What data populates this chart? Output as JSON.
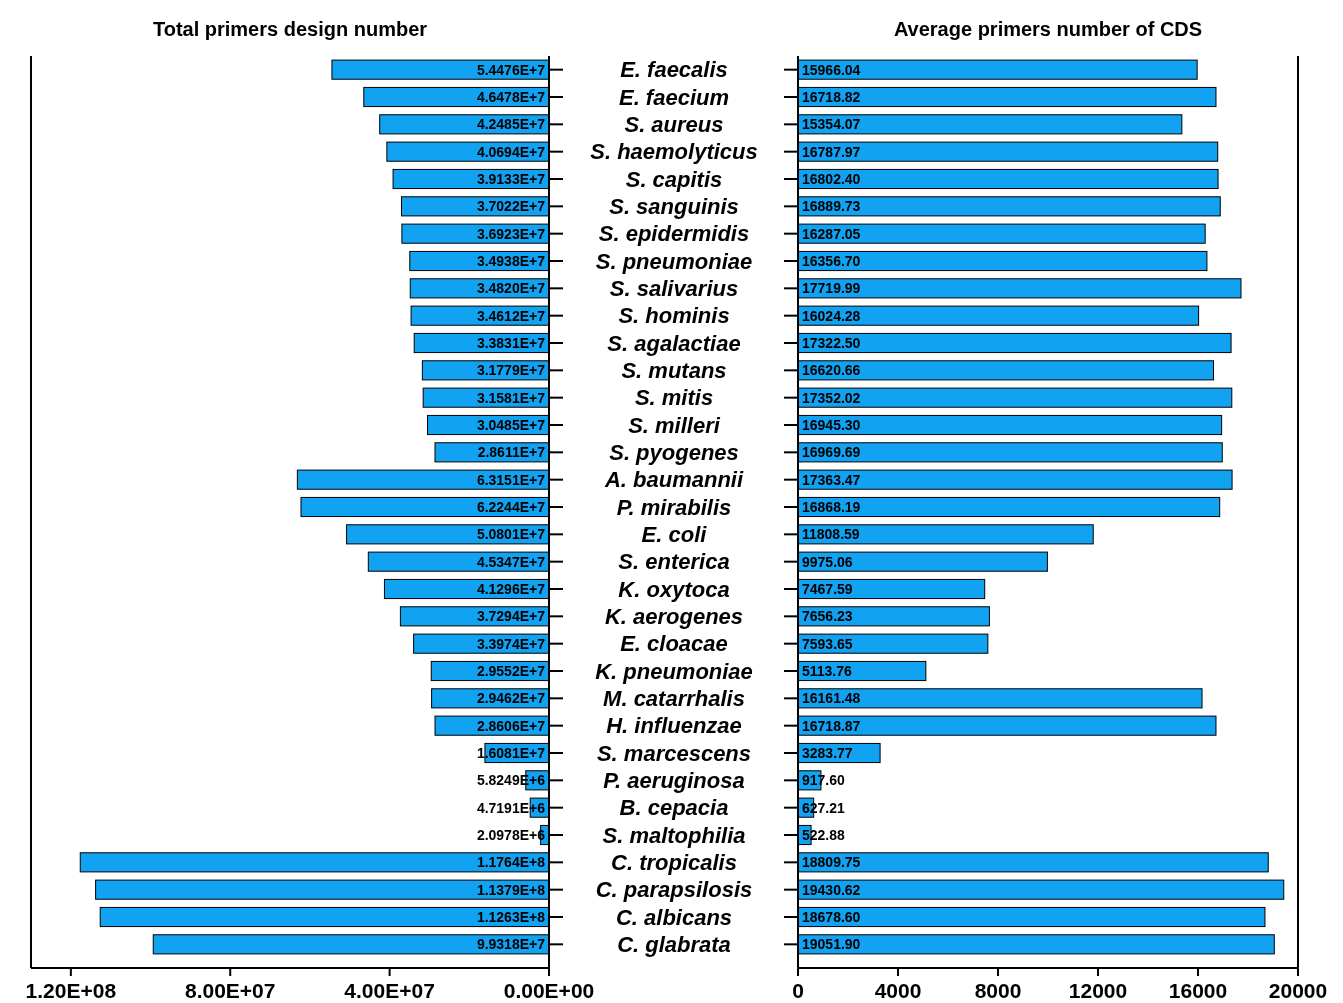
{
  "chart_data": [
    {
      "type": "bar",
      "orientation": "horizontal",
      "title": "Total primers design number",
      "categories": [
        "E. faecalis",
        "E. faecium",
        "S. aureus",
        "S. haemolyticus",
        "S. capitis",
        "S. sanguinis",
        "S. epidermidis",
        "S. pneumoniae",
        "S. salivarius",
        "S. hominis",
        "S. agalactiae",
        "S. mutans",
        "S. mitis",
        "S. milleri",
        "S. pyogenes",
        "A. baumannii",
        "P. mirabilis",
        "E. coli",
        "S. enterica",
        "K. oxytoca",
        "K. aerogenes",
        "E. cloacae",
        "K. pneumoniae",
        "M. catarrhalis",
        "H. influenzae",
        "S. marcescens",
        "P. aeruginosa",
        "B. cepacia",
        "S. maltophilia",
        "C. tropicalis",
        "C. parapsilosis",
        "C. albicans",
        "C. glabrata"
      ],
      "values": [
        54476000,
        46478000,
        42485000,
        40694000,
        39133000,
        37022000,
        36923000,
        34938000,
        34820000,
        34612000,
        33831000,
        31779000,
        31581000,
        30485000,
        28611000,
        63151000,
        62244000,
        50801000,
        45347000,
        41296000,
        37294000,
        33974000,
        29552000,
        29462000,
        28606000,
        16081000,
        5824900,
        4719100,
        2097800,
        117640000,
        113790000,
        112630000,
        99318000
      ],
      "value_labels": [
        "5.4476E+7",
        "4.6478E+7",
        "4.2485E+7",
        "4.0694E+7",
        "3.9133E+7",
        "3.7022E+7",
        "3.6923E+7",
        "3.4938E+7",
        "3.4820E+7",
        "3.4612E+7",
        "3.3831E+7",
        "3.1779E+7",
        "3.1581E+7",
        "3.0485E+7",
        "2.8611E+7",
        "6.3151E+7",
        "6.2244E+7",
        "5.0801E+7",
        "4.5347E+7",
        "4.1296E+7",
        "3.7294E+7",
        "3.3974E+7",
        "2.9552E+7",
        "2.9462E+7",
        "2.8606E+7",
        "1.6081E+7",
        "5.8249E+6",
        "4.7191E+6",
        "2.0978E+6",
        "1.1764E+8",
        "1.1379E+8",
        "1.1263E+8",
        "9.9318E+7"
      ],
      "color": "#12a2f2",
      "xlim": [
        130000000,
        0
      ],
      "xticks": [
        {
          "value": 120000000,
          "label": "1.20E+08"
        },
        {
          "value": 80000000,
          "label": "8.00E+07"
        },
        {
          "value": 40000000,
          "label": "4.00E+07"
        },
        {
          "value": 0,
          "label": "0.00E+00"
        }
      ]
    },
    {
      "type": "bar",
      "orientation": "horizontal",
      "title": "Average primers number of CDS",
      "categories": [
        null,
        null,
        null,
        null,
        null,
        null,
        null,
        null,
        null,
        null,
        null,
        null,
        null,
        null,
        null,
        null,
        null,
        null,
        null,
        null,
        null,
        null,
        null,
        null,
        null,
        null,
        null,
        null,
        null,
        null,
        null,
        null,
        null
      ],
      "values": [
        15966.04,
        16718.82,
        15354.07,
        16787.97,
        16802.4,
        16889.73,
        16287.05,
        16356.7,
        17719.99,
        16024.28,
        17322.5,
        16620.66,
        17352.02,
        16945.3,
        16969.69,
        17363.47,
        16868.19,
        11808.59,
        9975.06,
        7467.59,
        7656.23,
        7593.65,
        5113.76,
        16161.48,
        16718.87,
        3283.77,
        917.6,
        627.21,
        522.88,
        18809.75,
        19430.62,
        18678.6,
        19051.9
      ],
      "value_labels": [
        "15966.04",
        "16718.82",
        "15354.07",
        "16787.97",
        "16802.40",
        "16889.73",
        "16287.05",
        "16356.70",
        "17719.99",
        "16024.28",
        "17322.50",
        "16620.66",
        "17352.02",
        "16945.30",
        "16969.69",
        "17363.47",
        "16868.19",
        "11808.59",
        "9975.06",
        "7467.59",
        "7656.23",
        "7593.65",
        "5113.76",
        "16161.48",
        "16718.87",
        "3283.77",
        "917.60",
        "627.21",
        "522.88",
        "18809.75",
        "19430.62",
        "18678.60",
        "19051.90"
      ],
      "color": "#12a2f2",
      "xlim": [
        0,
        20000
      ],
      "xticks": [
        0,
        4000,
        8000,
        12000,
        16000,
        20000
      ]
    }
  ]
}
